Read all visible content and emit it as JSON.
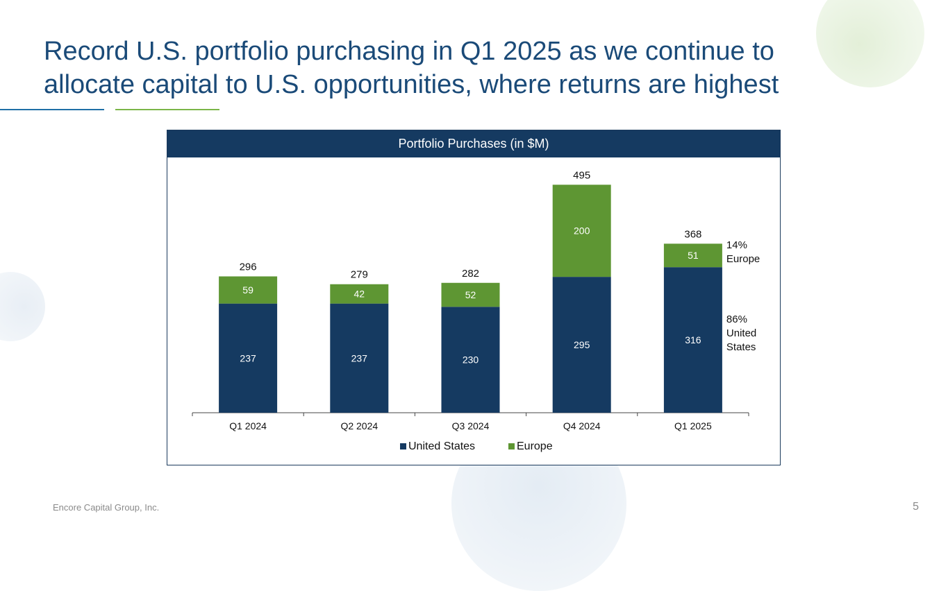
{
  "slide": {
    "title": "Record U.S. portfolio purchasing in Q1 2025 as we continue to allocate capital to U.S. opportunities, where returns are highest",
    "footer": "Encore Capital Group, Inc.",
    "page_number": "5"
  },
  "colors": {
    "title": "#1a4a78",
    "header_bg": "#153a61",
    "us": "#153a61",
    "europe": "#5e9633"
  },
  "chart_data": {
    "type": "bar",
    "stacked": true,
    "title": "Portfolio Purchases (in $M)",
    "categories": [
      "Q1 2024",
      "Q2 2024",
      "Q3 2024",
      "Q4 2024",
      "Q1 2025"
    ],
    "series": [
      {
        "name": "United States",
        "values": [
          237,
          237,
          230,
          295,
          316
        ],
        "color": "#153a61"
      },
      {
        "name": "Europe",
        "values": [
          59,
          42,
          52,
          200,
          51
        ],
        "color": "#5e9633"
      }
    ],
    "totals": [
      296,
      279,
      282,
      495,
      368
    ],
    "ylim": [
      0,
      500
    ],
    "grid": false,
    "legend": "bottom",
    "annotations": [
      {
        "text": [
          "14%",
          "Europe"
        ],
        "series": "Europe",
        "category": "Q1 2025"
      },
      {
        "text": [
          "86%",
          "United",
          "States"
        ],
        "series": "United States",
        "category": "Q1 2025"
      }
    ]
  }
}
